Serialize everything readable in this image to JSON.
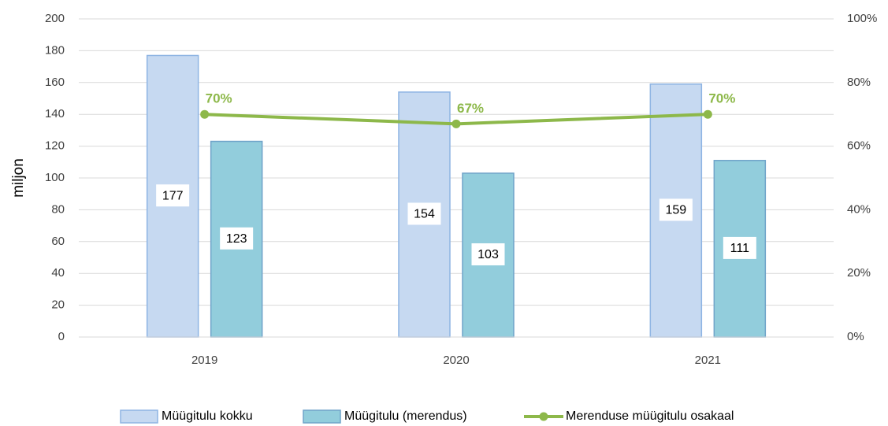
{
  "chart_data": {
    "type": "bar",
    "categories": [
      "2019",
      "2020",
      "2021"
    ],
    "y_label": "miljon",
    "ylim": [
      0,
      200
    ],
    "yticks": [
      0,
      20,
      40,
      60,
      80,
      100,
      120,
      140,
      160,
      180,
      200
    ],
    "y2lim": [
      0,
      100
    ],
    "y2ticks": [
      {
        "value": 0,
        "label": "0%"
      },
      {
        "value": 20,
        "label": "20%"
      },
      {
        "value": 40,
        "label": "40%"
      },
      {
        "value": 60,
        "label": "60%"
      },
      {
        "value": 80,
        "label": "80%"
      },
      {
        "value": 100,
        "label": "100%"
      }
    ],
    "grid": true,
    "legend": "bottom",
    "series": [
      {
        "name": "Müügitulu kokku",
        "type": "bar",
        "color": "#c6d9f1",
        "edge": "#8eb4e3",
        "values": [
          177,
          154,
          159
        ]
      },
      {
        "name": "Müügitulu (merendus)",
        "type": "bar",
        "color": "#92cddc",
        "edge": "#6fa3c9",
        "values": [
          123,
          103,
          111
        ]
      },
      {
        "name": "Merenduse müügitulu osakaal",
        "type": "line",
        "axis": "y2",
        "color": "#8db84a",
        "values": [
          70,
          67,
          70
        ],
        "value_labels": [
          "70%",
          "67%",
          "70%"
        ]
      }
    ]
  }
}
